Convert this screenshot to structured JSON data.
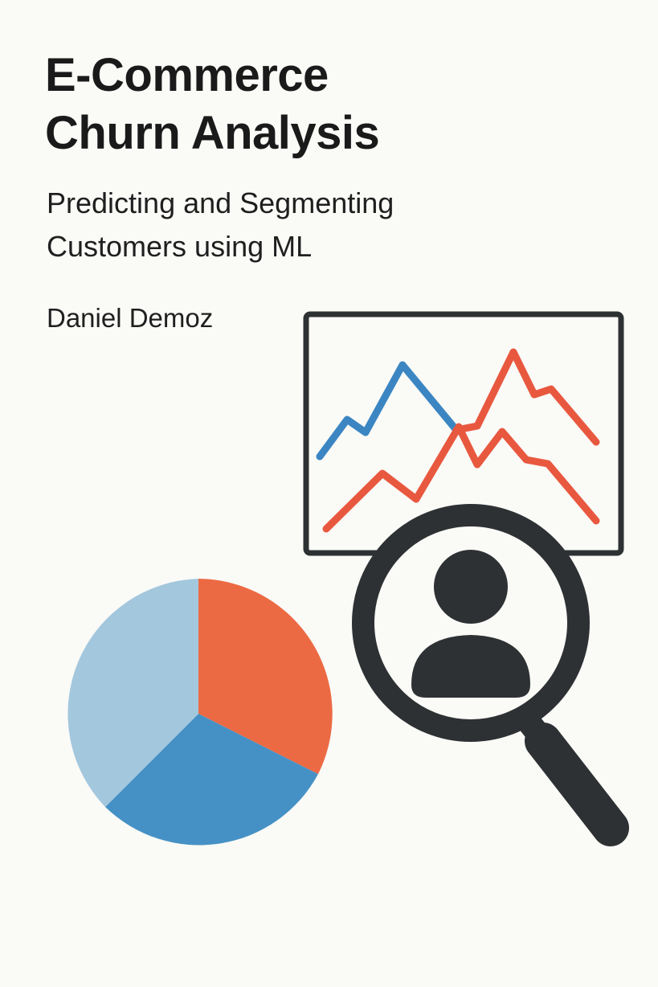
{
  "cover": {
    "title_line1": "E-Commerce",
    "title_line2": "Churn Analysis",
    "subtitle_line1": "Predicting and Segmenting",
    "subtitle_line2": "Customers using ML",
    "author": "Daniel Demoz"
  },
  "icons": [
    "line-chart-icon",
    "magnifying-glass-icon",
    "user-icon",
    "pie-chart-icon"
  ],
  "colors": {
    "background": "#fafaf7",
    "text": "#1a1a1a",
    "dark": "#2e3133",
    "blue": "#3b86c2",
    "red": "#e8583f",
    "pie_orange": "#ec6a43",
    "pie_blue": "#4591c5",
    "pie_light_blue": "#a3c7dd"
  }
}
